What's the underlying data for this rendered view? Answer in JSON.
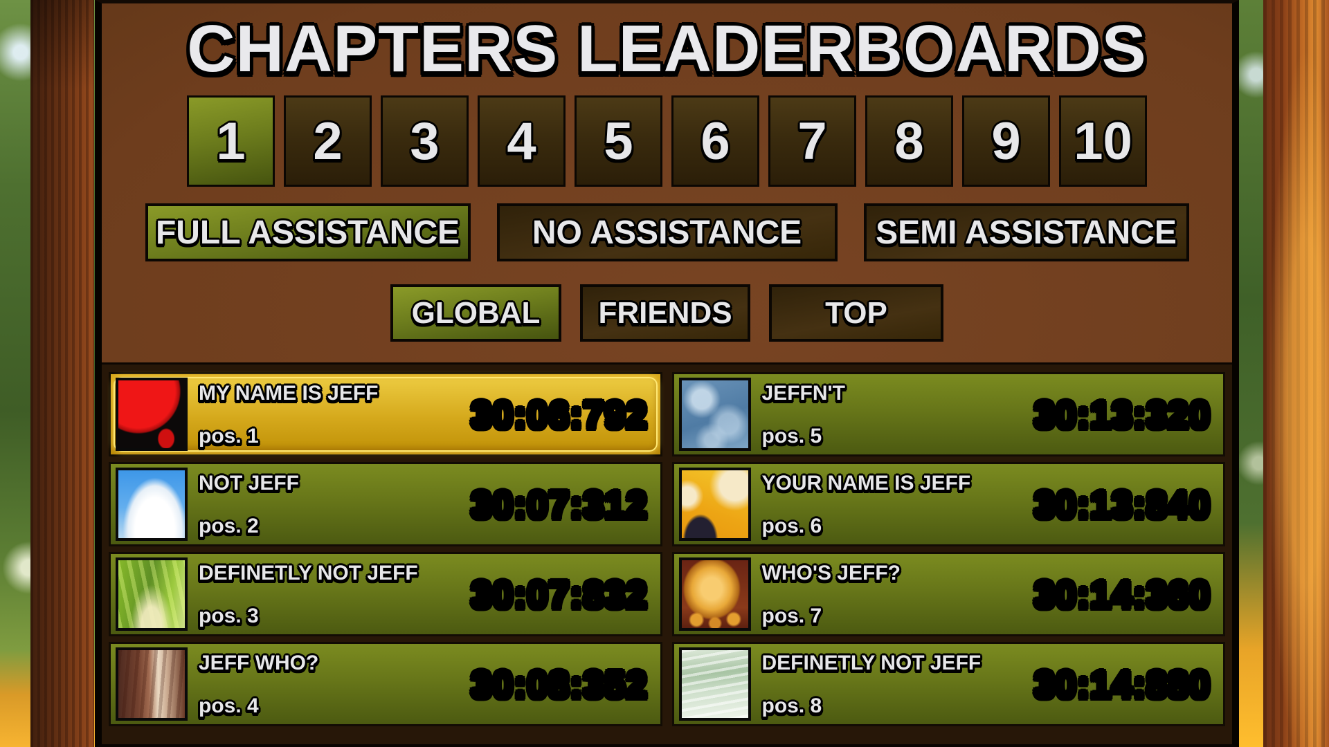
{
  "title": "CHAPTERS LEADERBOARDS",
  "chapters": {
    "items": [
      {
        "label": "1",
        "selected": true
      },
      {
        "label": "2",
        "selected": false
      },
      {
        "label": "3",
        "selected": false
      },
      {
        "label": "4",
        "selected": false
      },
      {
        "label": "5",
        "selected": false
      },
      {
        "label": "6",
        "selected": false
      },
      {
        "label": "7",
        "selected": false
      },
      {
        "label": "8",
        "selected": false
      },
      {
        "label": "9",
        "selected": false
      },
      {
        "label": "10",
        "selected": false
      }
    ]
  },
  "assistance": {
    "items": [
      {
        "label": "FULL ASSISTANCE",
        "selected": true
      },
      {
        "label": "NO ASSISTANCE",
        "selected": false
      },
      {
        "label": "SEMI ASSISTANCE",
        "selected": false
      }
    ]
  },
  "scope": {
    "items": [
      {
        "label": "GLOBAL",
        "selected": true
      },
      {
        "label": "FRIENDS",
        "selected": false
      },
      {
        "label": "TOP",
        "selected": false
      }
    ]
  },
  "leaderboard": {
    "entries": [
      {
        "name": "MY NAME IS JEFF",
        "position_label": "pos. 1",
        "time": "30:06:792",
        "avatar": "red-balloon-icon",
        "highlighted": true
      },
      {
        "name": "NOT JEFF",
        "position_label": "pos. 2",
        "time": "30:07:312",
        "avatar": "sky-cloud-icon",
        "highlighted": false
      },
      {
        "name": "DEFINETLY NOT JEFF",
        "position_label": "pos. 3",
        "time": "30:07:832",
        "avatar": "jungle-trees-icon",
        "highlighted": false
      },
      {
        "name": "JEFF WHO?",
        "position_label": "pos. 4",
        "time": "30:08:352",
        "avatar": "canyon-rock-icon",
        "highlighted": false
      },
      {
        "name": "JEFFN'T",
        "position_label": "pos. 5",
        "time": "30:13:320",
        "avatar": "ice-frost-icon",
        "highlighted": false
      },
      {
        "name": "YOUR NAME IS JEFF",
        "position_label": "pos. 6",
        "time": "30:13:840",
        "avatar": "bee-honey-icon",
        "highlighted": false
      },
      {
        "name": "WHO'S JEFF?",
        "position_label": "pos. 7",
        "time": "30:14:360",
        "avatar": "honey-nugget-icon",
        "highlighted": false
      },
      {
        "name": "DEFINETLY NOT JEFF",
        "position_label": "pos. 8",
        "time": "30:14:880",
        "avatar": "misty-water-icon",
        "highlighted": false
      }
    ]
  },
  "colors": {
    "selected_green": "#87971f",
    "button_brown": "#3a2a10",
    "highlight_gold": "#e2b92a",
    "panel_brown": "#6e3d1d",
    "list_backdrop": "#271708"
  }
}
